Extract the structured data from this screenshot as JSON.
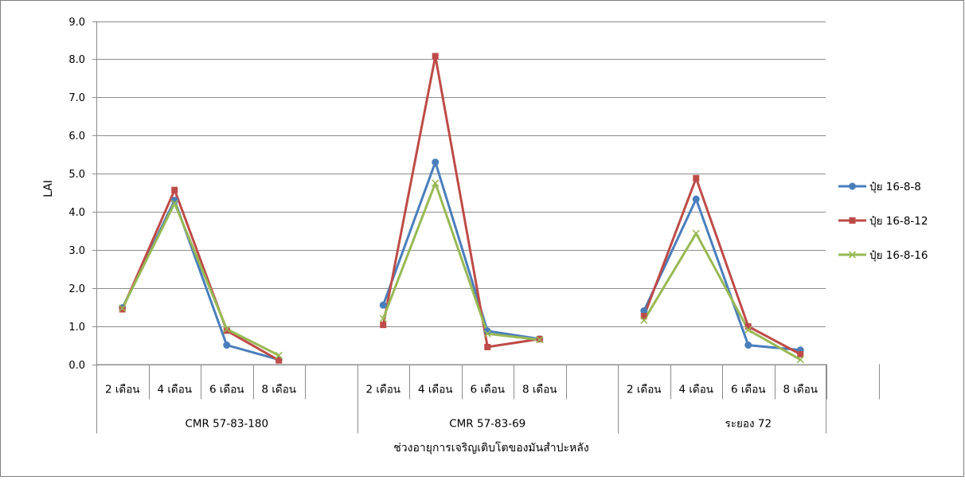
{
  "chart_data": {
    "type": "line",
    "title": "",
    "ylabel": "LAI",
    "xlabel": "ช่วงอายุการเจริญเติบโตของมันสำปะหลัง",
    "ylim": [
      0,
      9
    ],
    "ytick_step": 1.0,
    "ytick_labels": [
      "0.0",
      "1.0",
      "2.0",
      "3.0",
      "4.0",
      "5.0",
      "6.0",
      "7.0",
      "8.0",
      "9.0"
    ],
    "grid": true,
    "legend_position": "right",
    "groups": [
      {
        "name": "CMR 57-83-180",
        "categories": [
          "2 เดือน",
          "4 เดือน",
          "6 เดือน",
          "8 เดือน"
        ]
      },
      {
        "name": "CMR 57-83-69",
        "categories": [
          "2 เดือน",
          "4 เดือน",
          "6 เดือน",
          "8 เดือน"
        ]
      },
      {
        "name": "ระยอง 72",
        "categories": [
          "2 เดือน",
          "4 เดือน",
          "6 เดือน",
          "8 เดือน"
        ]
      }
    ],
    "series": [
      {
        "name": "ปุ๋ย 16-8-8",
        "color": "#4a7ebb",
        "marker": "circle",
        "values": [
          [
            1.48,
            4.3,
            0.5,
            0.12
          ],
          [
            1.55,
            5.3,
            0.87,
            0.66
          ],
          [
            1.4,
            4.33,
            0.5,
            0.37
          ]
        ]
      },
      {
        "name": "ปุ๋ย 16-8-12",
        "color": "#be4b48",
        "marker": "square",
        "values": [
          [
            1.44,
            4.57,
            0.88,
            0.1
          ],
          [
            1.03,
            8.08,
            0.45,
            0.66
          ],
          [
            1.26,
            4.88,
            0.99,
            0.26
          ]
        ]
      },
      {
        "name": "ปุ๋ย 16-8-16",
        "color": "#98b954",
        "marker": "x",
        "values": [
          [
            1.47,
            4.22,
            0.92,
            0.23
          ],
          [
            1.2,
            4.75,
            0.8,
            0.64
          ],
          [
            1.15,
            3.43,
            0.9,
            0.12
          ]
        ]
      }
    ]
  }
}
